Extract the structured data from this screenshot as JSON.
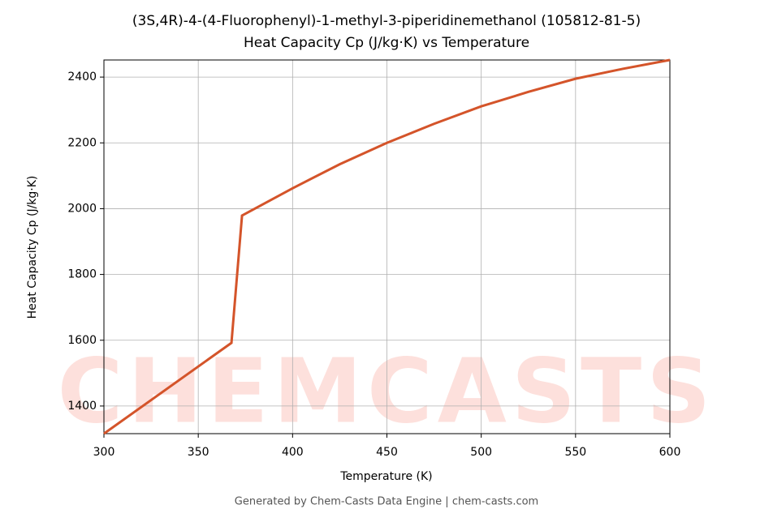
{
  "chart_data": {
    "type": "line",
    "title": "(3S,4R)-4-(4-Fluorophenyl)-1-methyl-3-piperidinemethanol (105812-81-5)",
    "subtitle": "Heat Capacity Cp (J/kg·K) vs Temperature",
    "x_label": "Temperature (K)",
    "y_label": "Heat Capacity Cp (J/kg·K)",
    "watermark": "CHEMCASTS",
    "footer": "Generated by Chem-Casts Data Engine | chem-casts.com",
    "x": [
      300,
      367.6,
      373.2,
      400,
      425,
      450,
      475,
      500,
      525,
      550,
      575,
      600
    ],
    "series": [
      {
        "name": "Cp",
        "color": "#d4542a",
        "values": [
          1316,
          1592,
          1979,
          2062,
          2135,
          2200,
          2258,
          2311,
          2355,
          2395,
          2425,
          2452
        ]
      }
    ],
    "xlim": [
      300,
      600
    ],
    "xticks": [
      300,
      350,
      400,
      450,
      500,
      550,
      600
    ],
    "ylim": [
      1316,
      2452
    ],
    "yticks": [
      1400,
      1600,
      1800,
      2000,
      2200,
      2400
    ],
    "grid": true
  }
}
